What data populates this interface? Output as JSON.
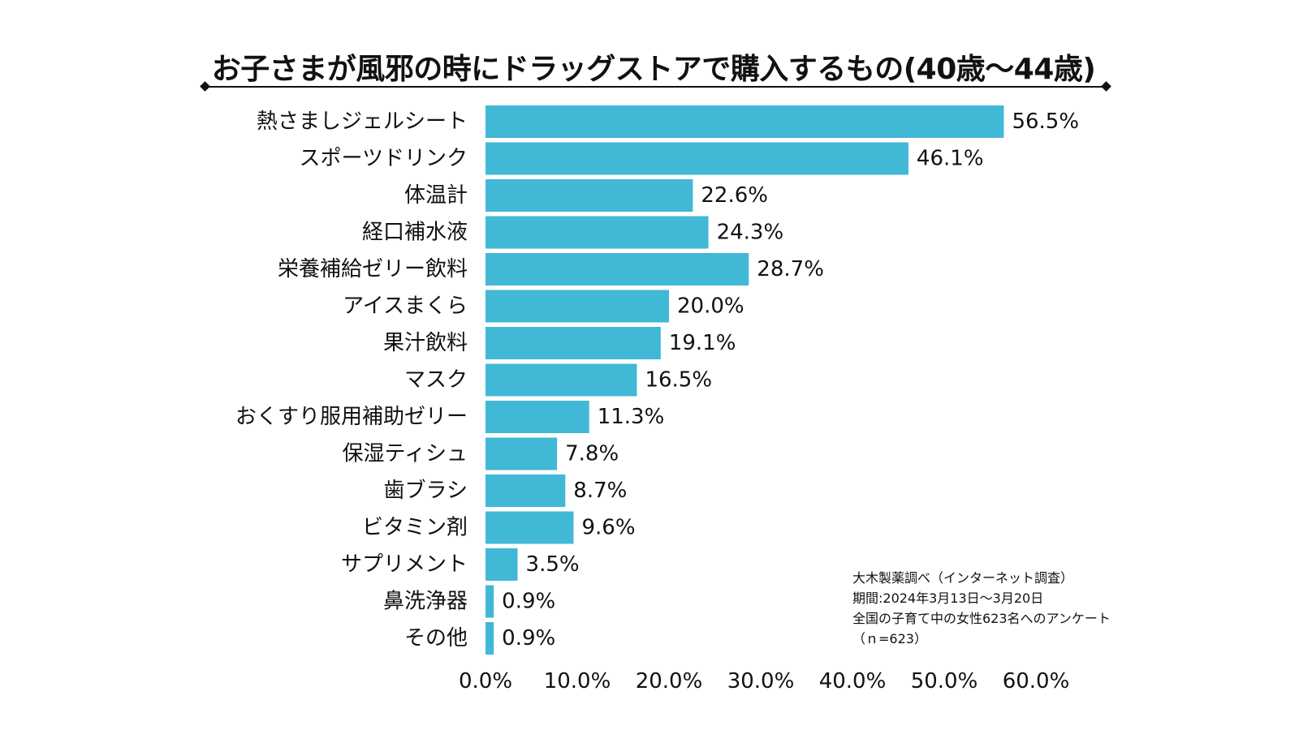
{
  "chart_data": {
    "type": "bar",
    "orientation": "horizontal",
    "title": "お子さまが風邪の時にドラッグストアで購入するもの(40歳〜44歳)",
    "categories": [
      "熱さましジェルシート",
      "スポーツドリンク",
      "体温計",
      "経口補水液",
      "栄養補給ゼリー飲料",
      "アイスまくら",
      "果汁飲料",
      "マスク",
      "おくすり服用補助ゼリー",
      "保湿ティシュ",
      "歯ブラシ",
      "ビタミン剤",
      "サプリメント",
      "鼻洗浄器",
      "その他"
    ],
    "values": [
      56.5,
      46.1,
      22.6,
      24.3,
      28.7,
      20.0,
      19.1,
      16.5,
      11.3,
      7.8,
      8.7,
      9.6,
      3.5,
      0.9,
      0.9
    ],
    "value_labels": [
      "56.5%",
      "46.1%",
      "22.6%",
      "24.3%",
      "28.7%",
      "20.0%",
      "19.1%",
      "16.5%",
      "11.3%",
      "7.8%",
      "8.7%",
      "9.6%",
      "3.5%",
      "0.9%",
      "0.9%"
    ],
    "xlim": [
      0,
      60
    ],
    "xticks": [
      0,
      10,
      20,
      30,
      40,
      50,
      60
    ],
    "xtick_labels": [
      "0.0%",
      "10.0%",
      "20.0%",
      "30.0%",
      "40.0%",
      "50.0%",
      "60.0%"
    ],
    "xlabel": "",
    "ylabel": "",
    "grid": false,
    "bar_color": "#41B8D5"
  },
  "source_note": {
    "line1": "大木製薬調べ（インターネット調査）",
    "line2": "期間:2024年3月13日〜3月20日",
    "line3": "全国の子育て中の女性623名へのアンケート",
    "line4": "（ｎ=623）"
  }
}
